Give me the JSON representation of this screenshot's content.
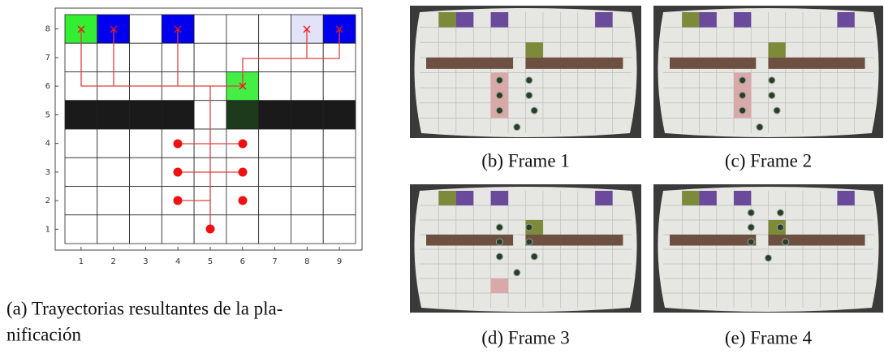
{
  "panel_a": {
    "xticks": [
      "1",
      "2",
      "3",
      "4",
      "5",
      "6",
      "7",
      "8",
      "9"
    ],
    "yticks": [
      "1",
      "2",
      "3",
      "4",
      "5",
      "6",
      "7",
      "8"
    ],
    "caption_lines": [
      "(a) Trayectorias resultantes de la pla-",
      "nificación"
    ]
  },
  "frames": [
    {
      "caption": "(b) Frame 1"
    },
    {
      "caption": "(c) Frame 2"
    },
    {
      "caption": "(d) Frame 3"
    },
    {
      "caption": "(e) Frame 4"
    }
  ]
}
